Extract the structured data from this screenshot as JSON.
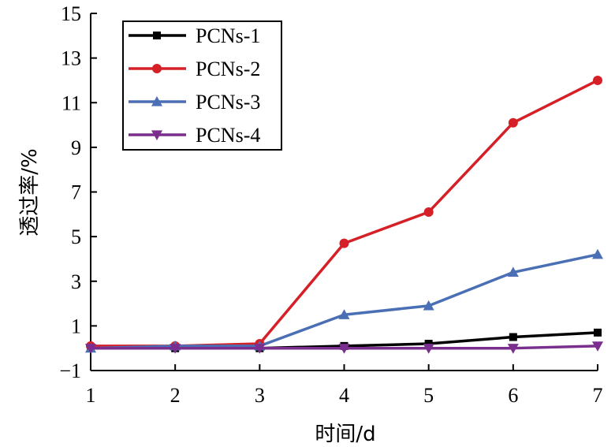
{
  "chart_data": {
    "type": "line",
    "title": "",
    "xlabel": "时间/d",
    "ylabel": "透过率/%",
    "x": [
      1,
      2,
      3,
      4,
      5,
      6,
      7
    ],
    "xlim": [
      1,
      7
    ],
    "ylim": [
      -1,
      15
    ],
    "xticks": [
      "1",
      "2",
      "3",
      "4",
      "5",
      "6",
      "7"
    ],
    "yticks": [
      "−1",
      "1",
      "3",
      "5",
      "7",
      "9",
      "11",
      "13",
      "15"
    ],
    "grid": false,
    "legend_position": "top-left",
    "series": [
      {
        "name": "PCNs-1",
        "color": "#000000",
        "marker": "square",
        "values": [
          0.0,
          0.0,
          0.0,
          0.1,
          0.2,
          0.5,
          0.7
        ]
      },
      {
        "name": "PCNs-2",
        "color": "#d62027",
        "marker": "circle",
        "values": [
          0.1,
          0.1,
          0.2,
          4.7,
          6.1,
          10.1,
          12.0
        ]
      },
      {
        "name": "PCNs-3",
        "color": "#4a6fb5",
        "marker": "triangle-up",
        "values": [
          0.0,
          0.1,
          0.1,
          1.5,
          1.9,
          3.4,
          4.2
        ]
      },
      {
        "name": "PCNs-4",
        "color": "#7a2f8e",
        "marker": "triangle-down",
        "values": [
          0.0,
          0.0,
          0.0,
          0.0,
          0.0,
          0.0,
          0.1
        ]
      }
    ]
  }
}
